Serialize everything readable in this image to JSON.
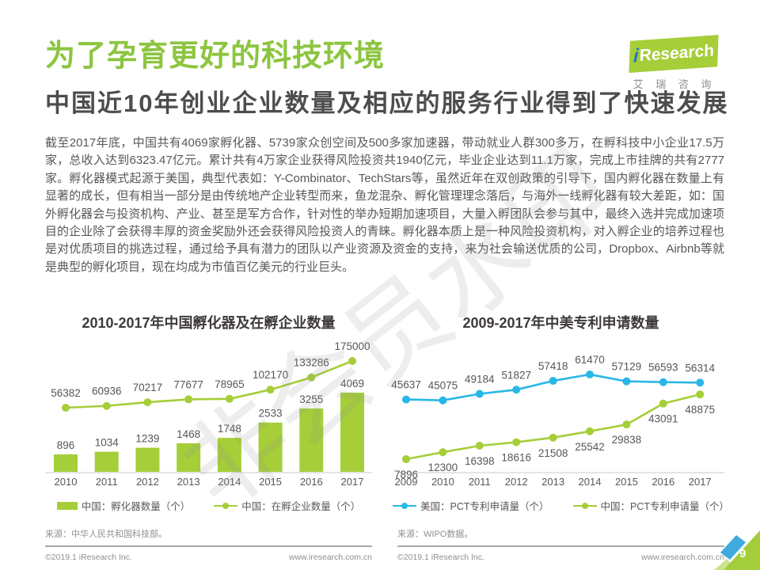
{
  "page": {
    "watermark": "非会员水印",
    "page_number": "9"
  },
  "logo": {
    "brand_i": "i",
    "brand_name": "Research",
    "brand_cn": "艾 瑞 咨 询"
  },
  "header": {
    "title": "为了孕育更好的科技环境",
    "subtitle": "中国近10年创业企业数量及相应的服务行业得到了快速发展"
  },
  "body": {
    "paragraph": "截至2017年底，中国共有4069家孵化器、5739家众创空间及500多家加速器，带动就业人群300多万，在孵科技中小企业17.5万家，总收入达到6323.47亿元。累计共有4万家企业获得风险投资共1940亿元，毕业企业达到11.1万家，完成上市挂牌的共有2777家。孵化器模式起源于美国，典型代表如：Y-Combinator、TechStars等，虽然近年在双创政策的引导下，国内孵化器在数量上有显著的成长，但有相当一部分是由传统地产企业转型而来，鱼龙混杂、孵化管理理念落后，与海外一线孵化器有较大差距，如：国外孵化器会与投资机构、产业、甚至是军方合作，针对性的举办短期加速项目，大量入孵团队会参与其中，最终入选并完成加速项目的企业除了会获得丰厚的资金奖励外还会获得风险投资人的青睐。孵化器本质上是一种风险投资机构，对入孵企业的培养过程也是对优质项目的挑选过程，通过给予具有潜力的团队以产业资源及资金的支持，来为社会输送优质的公司，Dropbox、Airbnb等就是典型的孵化项目，现在均成为市值百亿美元的行业巨头。"
  },
  "chart_data": [
    {
      "type": "bar",
      "title": "2010-2017年中国孵化器及在孵企业数量",
      "categories": [
        "2010",
        "2011",
        "2012",
        "2013",
        "2014",
        "2015",
        "2016",
        "2017"
      ],
      "series": [
        {
          "name": "中国：孵化器数量（个）",
          "type": "bar",
          "color": "#a5ce39",
          "values": [
            896,
            1034,
            1239,
            1468,
            1748,
            2533,
            3255,
            4069
          ],
          "label_position": "above"
        },
        {
          "name": "中国：在孵企业数量（个）",
          "type": "line",
          "color": "#a5ce39",
          "values": [
            56382,
            60936,
            70217,
            77677,
            78965,
            102170,
            133286,
            175000
          ],
          "label_position": "above"
        }
      ],
      "xlabel": "",
      "ylabel": "",
      "y_axis": "hidden",
      "grid": false,
      "legend_position": "bottom",
      "source": "来源：中华人民共和国科技部。"
    },
    {
      "type": "line",
      "title": "2009-2017年中美专利申请数量",
      "categories": [
        "2009",
        "2010",
        "2011",
        "2012",
        "2013",
        "2014",
        "2015",
        "2016",
        "2017"
      ],
      "series": [
        {
          "name": "美国：PCT专利申请量（个）",
          "type": "line",
          "color": "#29b7e8",
          "values": [
            45637,
            45075,
            49184,
            51827,
            57418,
            61470,
            57129,
            56593,
            56314
          ],
          "label_position": "above"
        },
        {
          "name": "中国：PCT专利申请量（个）",
          "type": "line",
          "color": "#a5ce39",
          "values": [
            7896,
            12300,
            16398,
            18616,
            21508,
            25542,
            29838,
            43091,
            48875
          ],
          "label_position": "below"
        }
      ],
      "xlabel": "",
      "ylabel": "",
      "y_axis": "hidden",
      "grid": false,
      "legend_position": "bottom",
      "source": "来源：WIPO数据。"
    }
  ],
  "footer": {
    "copyright": "©2019.1 iResearch Inc.",
    "website": "www.iresearch.com.cn"
  },
  "colors": {
    "green": "#a5ce39",
    "blue": "#29b7e8",
    "title_green": "#8cc540",
    "badge_blue": "#3fa9e0",
    "badge_green": "#a3cd3a",
    "badge_light_green": "#cde28f",
    "text_dark": "#4d4d4d",
    "text_body": "#595757",
    "text_gray": "#8f8f8f"
  }
}
